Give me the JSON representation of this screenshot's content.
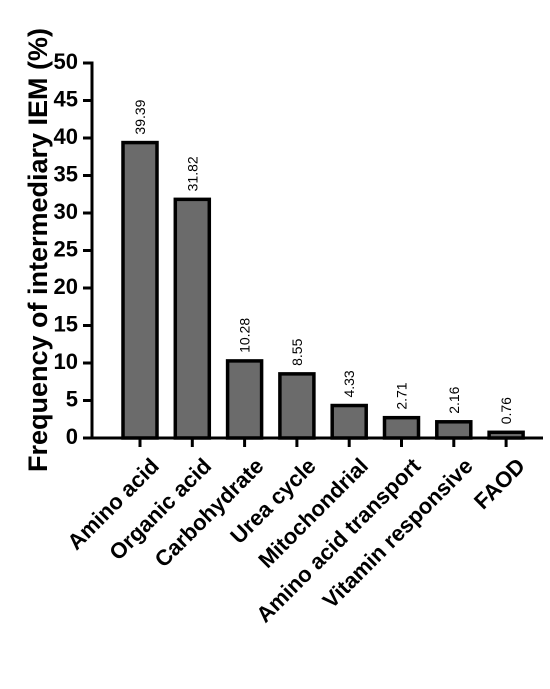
{
  "chart_data": {
    "type": "bar",
    "title": "",
    "xlabel": "",
    "ylabel": "Frequency of intermediary IEM (%)",
    "categories": [
      "Amino acid",
      "Organic acid",
      "Carbohydrate",
      "Urea cycle",
      "Mitochondrial",
      "Amino acid transport",
      "Vitamin responsive",
      "FAOD"
    ],
    "values": [
      39.39,
      31.82,
      10.28,
      8.55,
      4.33,
      2.71,
      2.16,
      0.76
    ],
    "data_labels": [
      "39.39",
      "31.82",
      "10.28",
      "8.55",
      "4.33",
      "2.71",
      "2.16",
      "0.76"
    ],
    "yticks": [
      "0",
      "5",
      "10",
      "15",
      "20",
      "25",
      "30",
      "35",
      "40",
      "45",
      "50"
    ],
    "ylim": [
      0,
      50
    ],
    "grid": false,
    "legend": "none",
    "bar_color": "#6b6b6b",
    "bar_edge_color": "#000000"
  }
}
